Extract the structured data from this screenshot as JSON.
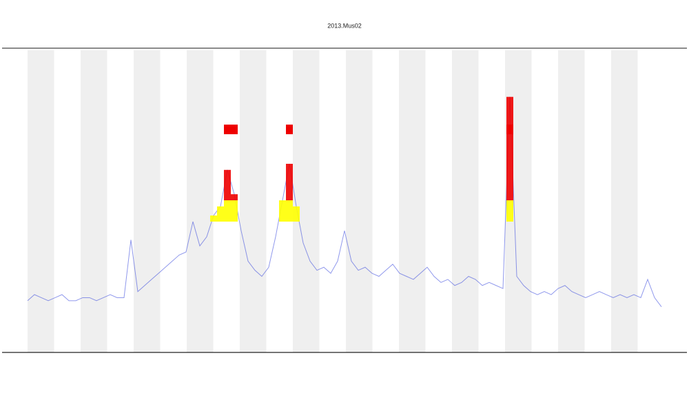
{
  "chart_data": {
    "type": "line",
    "title": "2013.Mus02",
    "x": [
      0,
      1,
      2,
      3,
      4,
      5,
      6,
      7,
      8,
      9,
      10,
      11,
      12,
      13,
      14,
      15,
      16,
      17,
      18,
      19,
      20,
      21,
      22,
      23,
      24,
      25,
      26,
      27,
      28,
      29,
      30,
      31,
      32,
      33,
      34,
      35,
      36,
      37,
      38,
      39,
      40,
      41,
      42,
      43,
      44,
      45,
      46,
      47,
      48,
      49,
      50,
      51,
      52,
      53,
      54,
      55,
      56,
      57,
      58,
      59,
      60,
      61,
      62,
      63,
      64,
      65,
      66,
      67,
      68,
      69,
      70,
      71,
      72,
      73,
      74,
      75,
      76,
      77,
      78,
      79,
      80,
      81,
      82,
      83,
      84,
      85,
      86,
      87,
      88,
      89,
      90,
      91,
      92
    ],
    "series": [
      {
        "color": "#3344dd",
        "values": [
          17,
          19,
          18,
          17,
          18,
          19,
          17,
          17,
          18,
          18,
          17,
          18,
          19,
          18,
          18,
          37,
          20,
          22,
          24,
          26,
          28,
          30,
          32,
          33,
          43,
          35,
          38,
          45,
          48,
          60,
          52,
          40,
          30,
          27,
          25,
          28,
          38,
          50,
          62,
          48,
          36,
          30,
          27,
          28,
          26,
          30,
          40,
          30,
          27,
          28,
          26,
          25,
          27,
          29,
          26,
          25,
          24,
          26,
          28,
          25,
          23,
          24,
          22,
          23,
          25,
          24,
          22,
          23,
          22,
          21,
          84,
          25,
          22,
          20,
          19,
          20,
          19,
          21,
          22,
          20,
          19,
          18,
          19,
          20,
          19,
          18,
          19,
          18,
          19,
          18,
          24,
          18,
          15
        ]
      }
    ],
    "xlim": [
      -4,
      96
    ],
    "ylim": [
      0,
      100
    ],
    "thresholds": [
      {
        "value": 43,
        "color": "#ffff00"
      },
      {
        "value": 50,
        "color": "#ee0000"
      }
    ],
    "bands": true
  }
}
